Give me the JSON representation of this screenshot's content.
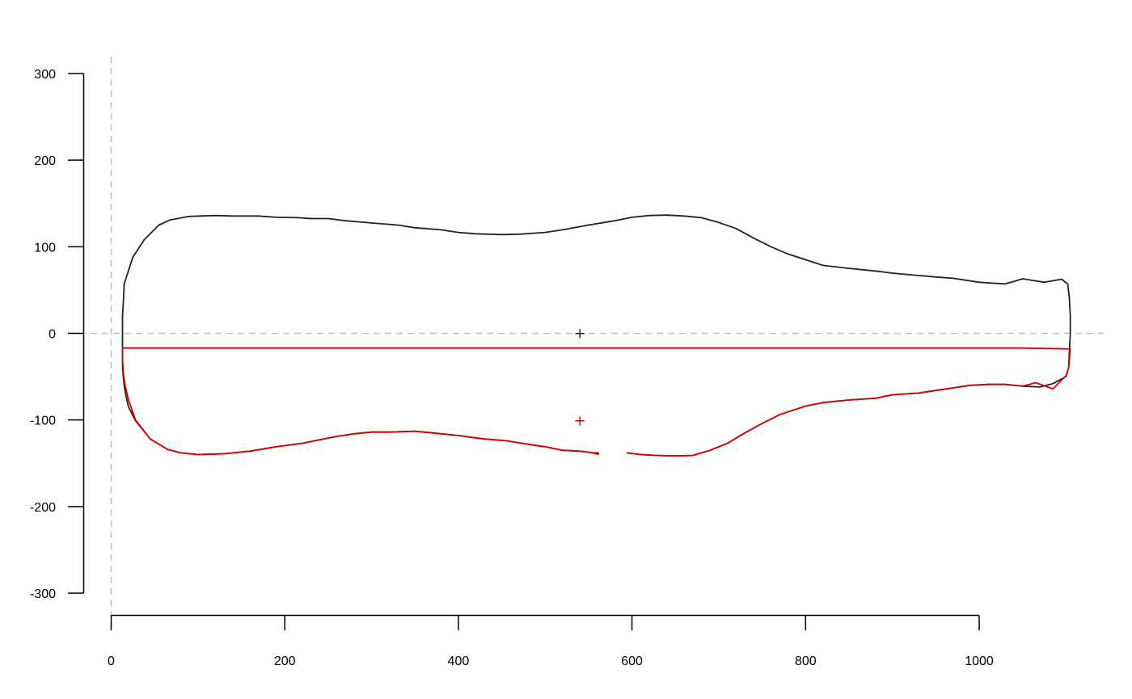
{
  "chart_data": {
    "type": "line",
    "title": "",
    "xlabel": "",
    "ylabel": "",
    "xlim": [
      0,
      1120
    ],
    "ylim": [
      -320,
      320
    ],
    "x_ticks": [
      0,
      200,
      400,
      600,
      800,
      1000
    ],
    "y_ticks": [
      -300,
      -200,
      -100,
      0,
      100,
      200,
      300
    ],
    "x_tick_labels": [
      "0",
      "200",
      "400",
      "600",
      "800",
      "1000"
    ],
    "y_tick_labels": [
      "-300",
      "-200",
      "-100",
      "0",
      "100",
      "200",
      "300"
    ],
    "grid": false,
    "reference_lines": {
      "x": 0,
      "y": 0,
      "color": "#bebebe",
      "style": "dashed"
    },
    "series": [
      {
        "color": "#222222",
        "points": [
          [
            562,
            -138
          ],
          [
            555,
            -138
          ],
          [
            540,
            -136
          ],
          [
            520,
            -135
          ],
          [
            500,
            -131
          ],
          [
            480,
            -128
          ],
          [
            455,
            -124
          ],
          [
            430,
            -122
          ],
          [
            400,
            -118
          ],
          [
            370,
            -115
          ],
          [
            350,
            -113
          ],
          [
            320,
            -114
          ],
          [
            300,
            -114
          ],
          [
            280,
            -116
          ],
          [
            260,
            -119
          ],
          [
            240,
            -123
          ],
          [
            220,
            -127
          ],
          [
            190,
            -131
          ],
          [
            160,
            -136
          ],
          [
            130,
            -139
          ],
          [
            100,
            -140
          ],
          [
            80,
            -138
          ],
          [
            65,
            -134
          ],
          [
            45,
            -122
          ],
          [
            28,
            -101
          ],
          [
            20,
            -85
          ],
          [
            17,
            -72
          ],
          [
            15,
            -60
          ],
          [
            14,
            -50
          ],
          [
            13,
            -40
          ],
          [
            13,
            -30
          ],
          [
            13,
            -20
          ],
          [
            13,
            -10
          ],
          [
            13,
            0
          ],
          [
            13,
            10
          ],
          [
            13,
            20
          ],
          [
            14,
            35
          ],
          [
            15,
            57
          ],
          [
            25,
            88
          ],
          [
            38,
            108
          ],
          [
            55,
            125
          ],
          [
            68,
            131
          ],
          [
            90,
            135
          ],
          [
            120,
            136
          ],
          [
            140,
            135.5
          ],
          [
            170,
            135.5
          ],
          [
            190,
            134
          ],
          [
            215,
            133.5
          ],
          [
            230,
            132.5
          ],
          [
            250,
            132.5
          ],
          [
            270,
            130
          ],
          [
            300,
            127.5
          ],
          [
            330,
            125
          ],
          [
            350,
            122
          ],
          [
            380,
            119.5
          ],
          [
            400,
            116.5
          ],
          [
            420,
            115
          ],
          [
            450,
            114
          ],
          [
            470,
            114.5
          ],
          [
            500,
            116.5
          ],
          [
            520,
            119.5
          ],
          [
            550,
            125
          ],
          [
            580,
            130
          ],
          [
            600,
            134
          ],
          [
            620,
            136
          ],
          [
            640,
            136.5
          ],
          [
            660,
            135.5
          ],
          [
            680,
            133.5
          ],
          [
            700,
            128
          ],
          [
            720,
            121
          ],
          [
            740,
            110
          ],
          [
            760,
            100
          ],
          [
            780,
            91.5
          ],
          [
            800,
            85
          ],
          [
            820,
            78.5
          ],
          [
            850,
            75
          ],
          [
            880,
            72
          ],
          [
            900,
            69.5
          ],
          [
            950,
            65
          ],
          [
            970,
            63.5
          ],
          [
            1000,
            59
          ],
          [
            1030,
            57
          ],
          [
            1050,
            63
          ],
          [
            1075,
            59
          ],
          [
            1095,
            62.5
          ],
          [
            1102,
            57
          ],
          [
            1104,
            40
          ],
          [
            1105,
            20
          ],
          [
            1105,
            0
          ],
          [
            1104,
            -20
          ],
          [
            1103,
            -40
          ],
          [
            1100,
            -50
          ],
          [
            1085,
            -58
          ],
          [
            1070,
            -62
          ],
          [
            1050,
            -61
          ],
          [
            1030,
            -59
          ],
          [
            1010,
            -59
          ],
          [
            990,
            -60
          ],
          [
            970,
            -63
          ],
          [
            950,
            -66
          ],
          [
            930,
            -69
          ],
          [
            900,
            -71
          ],
          [
            880,
            -75
          ],
          [
            850,
            -77
          ],
          [
            820,
            -80
          ],
          [
            800,
            -84
          ],
          [
            770,
            -94
          ],
          [
            750,
            -104
          ],
          [
            730,
            -115
          ],
          [
            710,
            -127
          ],
          [
            690,
            -135
          ],
          [
            670,
            -141
          ],
          [
            650,
            -141.5
          ],
          [
            630,
            -141
          ],
          [
            610,
            -140
          ],
          [
            594,
            -138
          ]
        ]
      },
      {
        "color": "#d90000",
        "points": [
          [
            594,
            -138
          ],
          [
            610,
            -140
          ],
          [
            630,
            -141
          ],
          [
            650,
            -141.5
          ],
          [
            670,
            -141
          ],
          [
            690,
            -135
          ],
          [
            710,
            -127
          ],
          [
            730,
            -115
          ],
          [
            750,
            -104
          ],
          [
            770,
            -94
          ],
          [
            800,
            -84
          ],
          [
            820,
            -80
          ],
          [
            850,
            -77
          ],
          [
            880,
            -75
          ],
          [
            900,
            -71
          ],
          [
            930,
            -69
          ],
          [
            950,
            -66
          ],
          [
            970,
            -63
          ],
          [
            990,
            -60
          ],
          [
            1010,
            -59
          ],
          [
            1030,
            -59
          ],
          [
            1050,
            -61
          ],
          [
            1065,
            -57
          ],
          [
            1085,
            -64
          ],
          [
            1100,
            -49
          ],
          [
            1103,
            -40
          ],
          [
            1104,
            -30
          ],
          [
            1105,
            -18
          ],
          [
            1050,
            -17
          ],
          [
            900,
            -17
          ],
          [
            700,
            -17
          ],
          [
            560,
            -17
          ],
          [
            300,
            -17
          ],
          [
            100,
            -17
          ],
          [
            13,
            -17
          ],
          [
            13,
            -30
          ],
          [
            14,
            -45
          ],
          [
            16,
            -60
          ],
          [
            20,
            -77
          ],
          [
            28,
            -100
          ],
          [
            45,
            -122
          ],
          [
            65,
            -134
          ],
          [
            80,
            -138
          ],
          [
            100,
            -140
          ],
          [
            130,
            -139
          ],
          [
            160,
            -136
          ],
          [
            190,
            -131
          ],
          [
            220,
            -127
          ],
          [
            240,
            -123
          ],
          [
            260,
            -119
          ],
          [
            280,
            -116
          ],
          [
            300,
            -114
          ],
          [
            320,
            -114
          ],
          [
            350,
            -113
          ],
          [
            370,
            -115
          ],
          [
            400,
            -118
          ],
          [
            430,
            -122
          ],
          [
            455,
            -124
          ],
          [
            480,
            -128
          ],
          [
            500,
            -131
          ],
          [
            520,
            -135
          ],
          [
            540,
            -136
          ],
          [
            555,
            -138
          ],
          [
            562,
            -140
          ]
        ]
      }
    ],
    "markers": [
      {
        "x": 540,
        "y": 0,
        "symbol": "+",
        "color": "#222222"
      },
      {
        "x": 540,
        "y": -101,
        "symbol": "+",
        "color": "#e00000"
      }
    ]
  }
}
